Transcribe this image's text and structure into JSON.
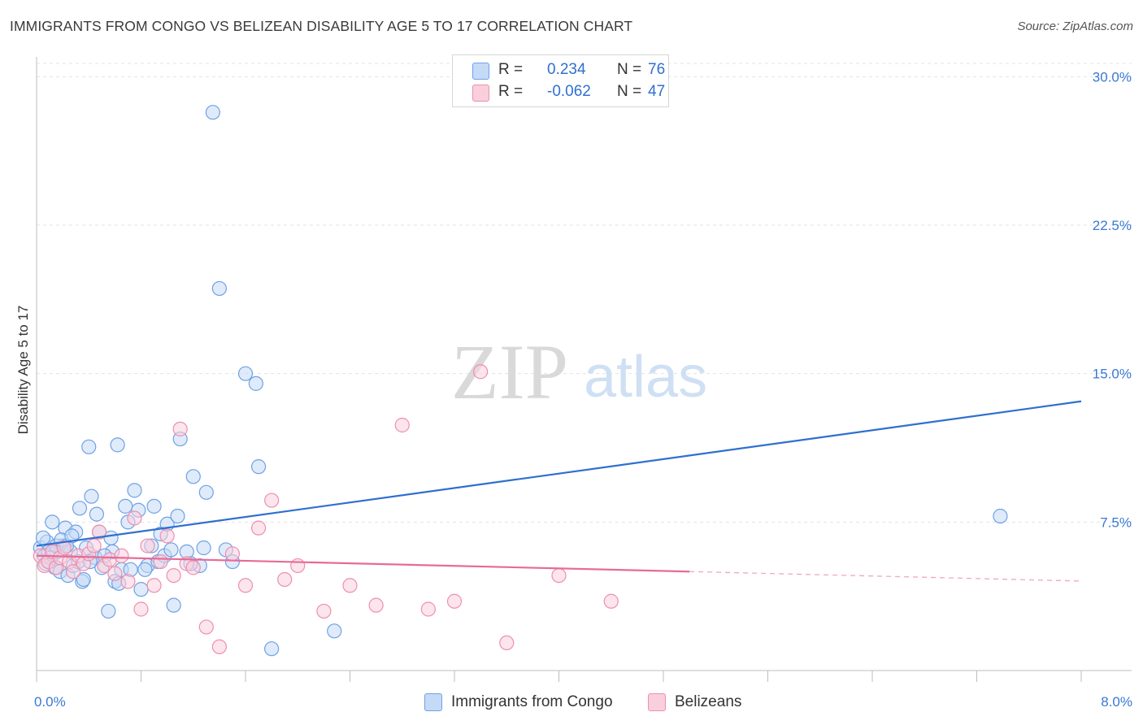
{
  "header": {
    "title": "IMMIGRANTS FROM CONGO VS BELIZEAN DISABILITY AGE 5 TO 17 CORRELATION CHART",
    "source": "Source: ZipAtlas.com"
  },
  "watermark": {
    "zip": "ZIP",
    "atlas": "atlas"
  },
  "legend": {
    "rows": [
      {
        "r_label": "R =",
        "r_value": "0.234",
        "n_label": "N =",
        "n_value": "76",
        "color": "#6fa1e6",
        "fill": "#c5daf6"
      },
      {
        "r_label": "R =",
        "r_value": "-0.062",
        "n_label": "N =",
        "n_value": "47",
        "color": "#ee8fae",
        "fill": "#f9cfdc"
      }
    ]
  },
  "colors": {
    "series1_stroke": "#6fa1e6",
    "series1_fill": "#c5daf6",
    "series1_line": "#2f6fd0",
    "series2_stroke": "#ee8fae",
    "series2_fill": "#f9cfdc",
    "series2_line": "#e86a96",
    "tick_label": "#3a78d4",
    "grid": "#e3e3e3"
  },
  "chart_data": {
    "type": "scatter",
    "title": "IMMIGRANTS FROM CONGO VS BELIZEAN DISABILITY AGE 5 TO 17 CORRELATION CHART",
    "xlabel": "",
    "ylabel": "Disability Age 5 to 17",
    "xlim": [
      0,
      8
    ],
    "ylim": [
      0,
      31
    ],
    "x_tick_labels": [
      "0.0%",
      "8.0%"
    ],
    "y_ticks": [
      7.5,
      15.0,
      22.5,
      30.0
    ],
    "y_tick_labels": [
      "7.5%",
      "15.0%",
      "22.5%",
      "30.0%"
    ],
    "grid": true,
    "legend_position": "top-center",
    "series": [
      {
        "name": "Immigrants from Congo",
        "x": [
          0.03,
          0.06,
          0.08,
          0.1,
          0.12,
          0.14,
          0.16,
          0.18,
          0.2,
          0.22,
          0.24,
          0.26,
          0.28,
          0.3,
          0.33,
          0.35,
          0.38,
          0.4,
          0.42,
          0.45,
          0.48,
          0.5,
          0.55,
          0.58,
          0.6,
          0.62,
          0.65,
          0.68,
          0.7,
          0.75,
          0.8,
          0.85,
          0.9,
          0.95,
          1.0,
          1.05,
          1.1,
          1.15,
          1.2,
          1.25,
          1.3,
          1.35,
          1.4,
          1.45,
          1.5,
          1.6,
          1.7,
          1.8,
          0.05,
          0.07,
          0.09,
          0.11,
          0.15,
          0.19,
          0.23,
          0.27,
          0.32,
          0.36,
          0.41,
          0.46,
          0.52,
          0.57,
          0.63,
          0.72,
          0.78,
          0.83,
          0.88,
          0.93,
          0.98,
          1.03,
          1.08,
          1.18,
          1.28,
          1.68,
          2.28,
          7.38
        ],
        "y": [
          6.2,
          5.8,
          6.5,
          5.5,
          7.5,
          5.2,
          6.0,
          5.0,
          6.3,
          7.2,
          4.8,
          6.0,
          5.3,
          7.0,
          8.2,
          4.5,
          6.2,
          11.3,
          8.8,
          5.7,
          7.0,
          5.2,
          3.0,
          6.0,
          4.5,
          11.4,
          5.1,
          8.3,
          7.5,
          9.1,
          4.1,
          5.3,
          8.3,
          6.9,
          7.4,
          3.3,
          11.7,
          6.0,
          9.8,
          5.3,
          9.0,
          28.2,
          19.3,
          6.1,
          5.5,
          15.0,
          10.3,
          1.1,
          6.7,
          5.4,
          6.0,
          5.7,
          6.3,
          6.6,
          6.3,
          6.8,
          5.5,
          4.6,
          5.5,
          7.9,
          5.8,
          6.7,
          4.4,
          5.1,
          8.1,
          5.1,
          6.3,
          5.5,
          5.8,
          6.1,
          7.8,
          5.4,
          6.2,
          14.5,
          2.0,
          7.8
        ]
      },
      {
        "name": "Belizeans",
        "x": [
          0.03,
          0.06,
          0.09,
          0.12,
          0.15,
          0.18,
          0.21,
          0.25,
          0.28,
          0.32,
          0.36,
          0.4,
          0.44,
          0.48,
          0.52,
          0.56,
          0.6,
          0.65,
          0.7,
          0.75,
          0.8,
          0.85,
          0.9,
          0.95,
          1.0,
          1.05,
          1.1,
          1.15,
          1.2,
          1.3,
          1.4,
          1.5,
          1.6,
          1.7,
          1.8,
          1.9,
          2.0,
          2.2,
          2.4,
          2.6,
          2.8,
          3.0,
          3.2,
          3.4,
          3.6,
          4.0,
          4.4
        ],
        "y": [
          5.8,
          5.3,
          5.5,
          6.0,
          5.2,
          5.7,
          6.2,
          5.5,
          5.0,
          5.8,
          5.4,
          5.9,
          6.3,
          7.0,
          5.3,
          5.6,
          4.9,
          5.8,
          4.5,
          7.7,
          3.1,
          6.3,
          4.3,
          5.5,
          6.8,
          4.8,
          12.2,
          5.4,
          5.2,
          2.2,
          1.2,
          5.9,
          4.3,
          7.2,
          8.6,
          4.6,
          5.3,
          3.0,
          4.3,
          3.3,
          12.4,
          3.1,
          3.5,
          15.1,
          1.4,
          4.8,
          3.5
        ]
      }
    ],
    "trendlines": [
      {
        "series": "Immigrants from Congo",
        "x": [
          0,
          8
        ],
        "y": [
          6.3,
          13.6
        ]
      },
      {
        "series": "Belizeans",
        "x": [
          0,
          5.0
        ],
        "y": [
          5.8,
          5.0
        ],
        "dashed_extension_to_x": 8
      }
    ]
  },
  "bottom_legend": {
    "items": [
      {
        "label": "Immigrants from Congo"
      },
      {
        "label": "Belizeans"
      }
    ]
  }
}
